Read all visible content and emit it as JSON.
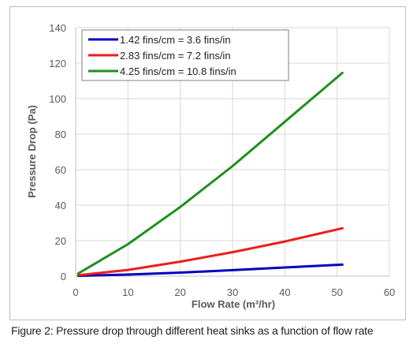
{
  "caption": "Figure 2: Pressure drop through different heat sinks as a function of flow rate",
  "chart_data": {
    "type": "line",
    "title": "",
    "xlabel": "Flow Rate (m³/hr)",
    "ylabel": "Pressure Drop (Pa)",
    "xlim": [
      0,
      60
    ],
    "ylim": [
      0,
      140
    ],
    "xticks": [
      "0",
      "10",
      "20",
      "30",
      "40",
      "50",
      "60"
    ],
    "yticks": [
      "0",
      "20",
      "40",
      "60",
      "80",
      "100",
      "120",
      "140"
    ],
    "grid": true,
    "legend_position": "top-left",
    "series": [
      {
        "name": "1.42 fins/cm = 3.6 fins/in",
        "color": "#0000c0",
        "x": [
          0.5,
          10,
          20,
          30,
          40,
          51
        ],
        "y": [
          0.2,
          0.9,
          2.0,
          3.4,
          4.9,
          6.5
        ]
      },
      {
        "name": "2.83 fins/cm = 7.2 fins/in",
        "color": "#ee1c1c",
        "x": [
          0.5,
          10,
          20,
          30,
          40,
          51
        ],
        "y": [
          0.5,
          3.5,
          8.2,
          13.5,
          19.5,
          27
        ]
      },
      {
        "name": "4.25 fins/cm = 10.8 fins/in",
        "color": "#1f8f1f",
        "x": [
          0.5,
          10,
          20,
          30,
          40,
          51
        ],
        "y": [
          1.5,
          18,
          39,
          62,
          87,
          114.5
        ]
      }
    ]
  }
}
